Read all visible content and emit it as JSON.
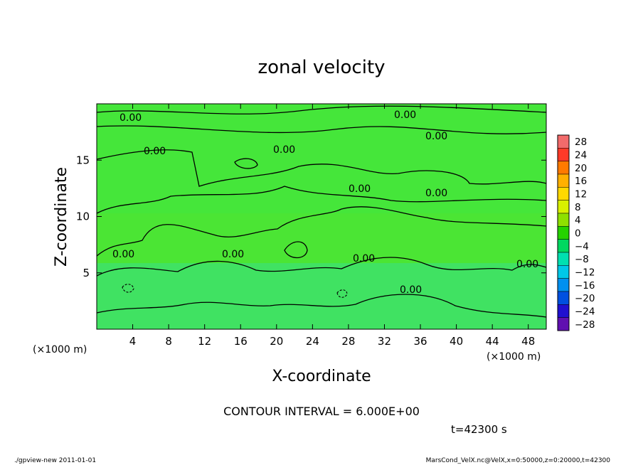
{
  "chart_data": {
    "type": "heatmap",
    "title": "zonal velocity",
    "xlabel": "X-coordinate",
    "ylabel": "Z-coordinate",
    "x_unit": "(×1000 m)",
    "y_unit": "(×1000 m)",
    "xlim": [
      0,
      50
    ],
    "ylim": [
      0,
      20
    ],
    "x_ticks": [
      "4",
      "8",
      "12",
      "16",
      "20",
      "24",
      "28",
      "32",
      "36",
      "40",
      "44",
      "48"
    ],
    "y_ticks": [
      "5",
      "10",
      "15"
    ],
    "contour_labels": [
      "0.00",
      "0.00",
      "0.00",
      "0.00",
      "0.00",
      "0.00",
      "0.00",
      "0.00",
      "0.00",
      "0.00",
      "0.00",
      "0.00"
    ],
    "contour_interval_text": "CONTOUR INTERVAL = 6.000E+00",
    "time_text": "t=42300 s",
    "colorbar": {
      "levels": [
        "28",
        "24",
        "20",
        "16",
        "12",
        "8",
        "4",
        "0",
        "−4",
        "−8",
        "−12",
        "−16",
        "−20",
        "−24",
        "−28"
      ],
      "colors": [
        "#f26b6b",
        "#ff3a28",
        "#ff7a00",
        "#ffb000",
        "#ffd800",
        "#d8f000",
        "#8ee000",
        "#25d200",
        "#00d860",
        "#00e0b0",
        "#00c8e8",
        "#0090f0",
        "#0050e0",
        "#2010d0",
        "#6010b0"
      ]
    }
  },
  "footer": {
    "left": "./gpview-new   2011-01-01",
    "right": "MarsCond_VelX.nc@VelX,x=0:50000,z=0:20000,t=42300"
  }
}
